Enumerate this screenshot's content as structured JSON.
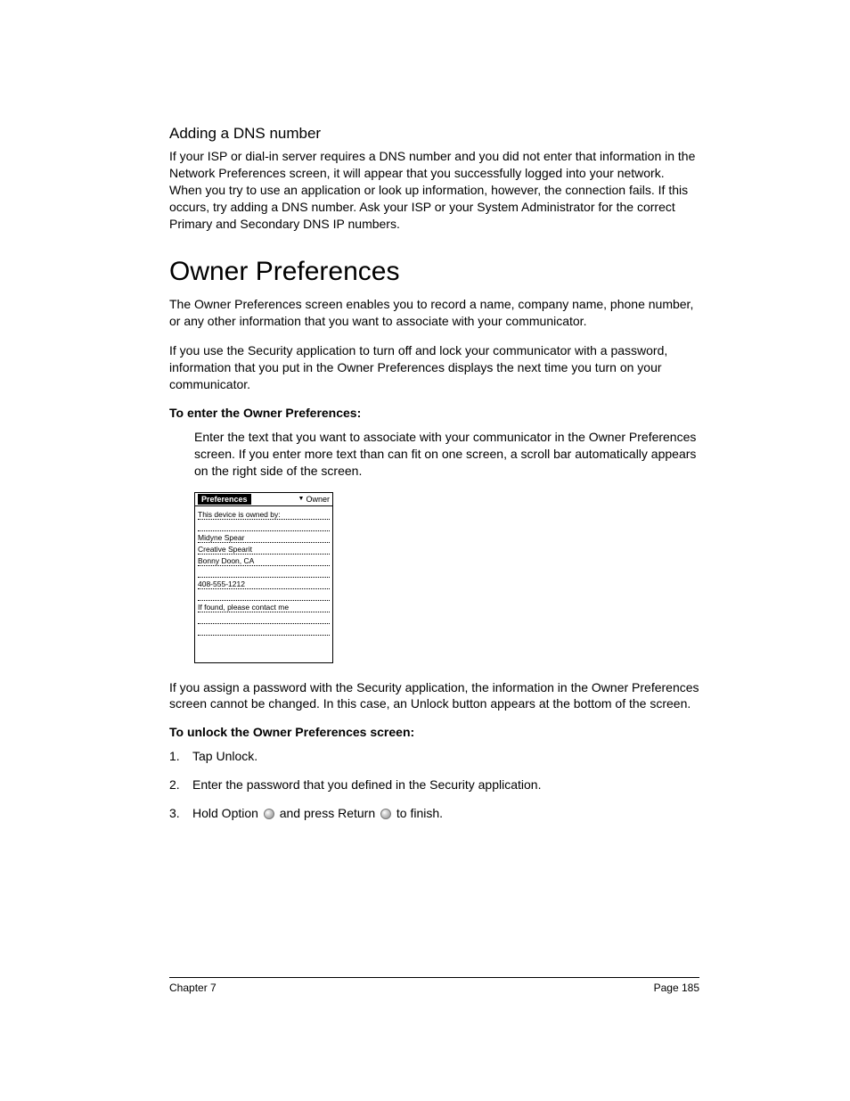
{
  "sections": {
    "dns": {
      "heading": "Adding a DNS number",
      "paragraph": "If your ISP or dial-in server requires a DNS number and you did not enter that information in the Network Preferences screen, it will appear that you successfully logged into your network. When you try to use an application or look up information, however, the connection fails. If this occurs, try adding a DNS number. Ask your ISP or your System Administrator for the correct Primary and Secondary DNS IP numbers."
    },
    "owner": {
      "heading": "Owner Preferences",
      "para1": "The Owner Preferences screen enables you to record a name, company name, phone number, or any other information that you want to associate with your communicator.",
      "para2": "If you use the Security application to turn off and lock your communicator with a password, information that you put in the Owner Preferences displays the next time you turn on your communicator.",
      "enter_label": "To enter the Owner Preferences:",
      "enter_body": "Enter the text that you want to associate with your communicator in the Owner Preferences screen. If you enter more text than can fit on one screen, a scroll bar automatically appears on the right side of the screen.",
      "after_shot": "If you assign a password with the Security application, the information in the Owner Preferences screen cannot be changed. In this case, an Unlock button appears at the bottom of the screen.",
      "unlock_label": "To unlock the Owner Preferences screen:",
      "steps": {
        "s1": "Tap Unlock.",
        "s2": "Enter the password that you defined in the Security application.",
        "s3a": "Hold Option",
        "s3b": "and press Return",
        "s3c": "to finish."
      }
    }
  },
  "device_shot": {
    "title": "Preferences",
    "dropdown": "Owner",
    "lines": [
      "This device is owned by:",
      "",
      "Midyne Spear",
      "Creative Spearit",
      "Bonny Doon, CA",
      "",
      "408-555-1212",
      "",
      "If found, please contact me",
      "",
      ""
    ]
  },
  "footer": {
    "left": "Chapter 7",
    "right": "Page 185"
  }
}
